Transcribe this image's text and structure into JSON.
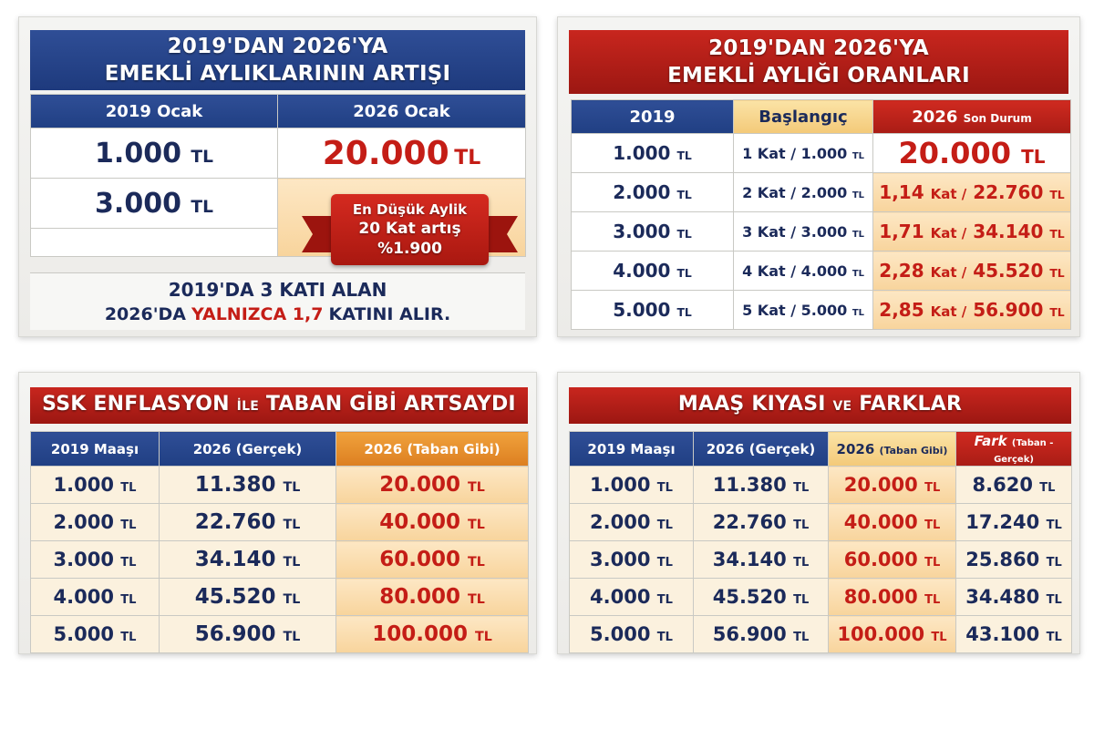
{
  "card1": {
    "title_line1": "2019'DAN 2026'YA",
    "title_line2": "EMEKLİ AYLIKLARININ ARTIŞI",
    "col1": "2019 Ocak",
    "col2": "2026 Ocak",
    "row1_left": "1.000",
    "row2_left": "3.000",
    "row1_right": "20.000",
    "unit": "TL",
    "ribbon_line1": "En Düşük Aylik",
    "ribbon_line2": "20 Kat artış",
    "ribbon_line3": "%1.900",
    "footer_line1": "2019'DA 3 KATI ALAN",
    "footer_line2_a": "2026'DA",
    "footer_line2_b": "YALNIZCA 1,7",
    "footer_line2_c": "KATINI ALIR."
  },
  "card2": {
    "title_line1": "2019'DAN 2026'YA",
    "title_line2": "EMEKLİ AYLIĞI ORANLARI",
    "col1": "2019",
    "col2": "Başlangıç",
    "col3": "2026",
    "col3_sub": "Son Durum",
    "unit": "TL",
    "rows": [
      {
        "y2019": "1.000",
        "start": "1 Kat / 1.000",
        "now": "20.000"
      },
      {
        "y2019": "2.000",
        "start": "2 Kat / 2.000",
        "now_k": "1,14",
        "now_v": "22.760"
      },
      {
        "y2019": "3.000",
        "start": "3 Kat / 3.000",
        "now_k": "1,71",
        "now_v": "34.140"
      },
      {
        "y2019": "4.000",
        "start": "4 Kat / 4.000",
        "now_k": "2,28",
        "now_v": "45.520"
      },
      {
        "y2019": "5.000",
        "start": "5 Kat / 5.000",
        "now_k": "2,85",
        "now_v": "56.900"
      }
    ],
    "kat_word": "Kat /"
  },
  "card3": {
    "title_a": "SSK ENFLASYON",
    "title_b": "İLE",
    "title_c": "TABAN GİBİ ARTSAYDI",
    "col1": "2019 Maaşı",
    "col2": "2026 (Gerçek)",
    "col3": "2026 (Taban Gibi)",
    "unit": "TL",
    "rows": [
      {
        "a": "1.000",
        "b": "11.380",
        "c": "20.000"
      },
      {
        "a": "2.000",
        "b": "22.760",
        "c": "40.000"
      },
      {
        "a": "3.000",
        "b": "34.140",
        "c": "60.000"
      },
      {
        "a": "4.000",
        "b": "45.520",
        "c": "80.000"
      },
      {
        "a": "5.000",
        "b": "56.900",
        "c": "100.000"
      }
    ]
  },
  "card4": {
    "title_a": "MAAŞ KIYASI",
    "title_b": "VE",
    "title_c": "FARKLAR",
    "col1": "2019 Maaşı",
    "col2": "2026 (Gerçek)",
    "col3": "2026",
    "col3_sub": "(Taban Gibi)",
    "col4": "Fark",
    "col4_sub": "(Taban - Gerçek)",
    "unit": "TL",
    "rows": [
      {
        "a": "1.000",
        "b": "11.380",
        "c": "20.000",
        "d": "8.620"
      },
      {
        "a": "2.000",
        "b": "22.760",
        "c": "40.000",
        "d": "17.240"
      },
      {
        "a": "3.000",
        "b": "34.140",
        "c": "60.000",
        "d": "25.860"
      },
      {
        "a": "4.000",
        "b": "45.520",
        "c": "80.000",
        "d": "34.480"
      },
      {
        "a": "5.000",
        "b": "56.900",
        "c": "100.000",
        "d": "43.100"
      }
    ]
  },
  "colors": {
    "navy": "#1b2a5a",
    "red": "#c41d16",
    "blue_header": "#2f4e96",
    "red_header": "#c8261e",
    "orange_header": "#f0a23c",
    "cream": "#fbf1de"
  }
}
